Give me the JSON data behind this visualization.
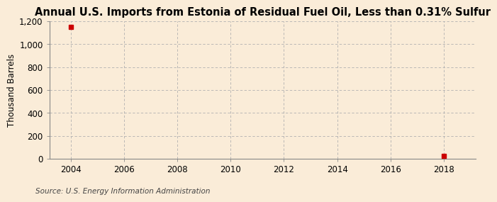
{
  "title": "Annual U.S. Imports from Estonia of Residual Fuel Oil, Less than 0.31% Sulfur",
  "ylabel": "Thousand Barrels",
  "source_text": "Source: U.S. Energy Information Administration",
  "background_color": "#faecd8",
  "data_points": [
    {
      "year": 2004,
      "value": 1148
    },
    {
      "year": 2018,
      "value": 25
    }
  ],
  "marker_color": "#cc0000",
  "marker_size": 4,
  "xlim": [
    2003.2,
    2019.2
  ],
  "ylim": [
    0,
    1200
  ],
  "xticks": [
    2004,
    2006,
    2008,
    2010,
    2012,
    2014,
    2016,
    2018
  ],
  "yticks": [
    0,
    200,
    400,
    600,
    800,
    1000,
    1200
  ],
  "ytick_labels": [
    "0",
    "200",
    "400",
    "600",
    "800",
    "1,000",
    "1,200"
  ],
  "grid_color": "#b0b0b0",
  "grid_linestyle": "--",
  "title_fontsize": 10.5,
  "label_fontsize": 8.5,
  "tick_fontsize": 8.5,
  "source_fontsize": 7.5
}
